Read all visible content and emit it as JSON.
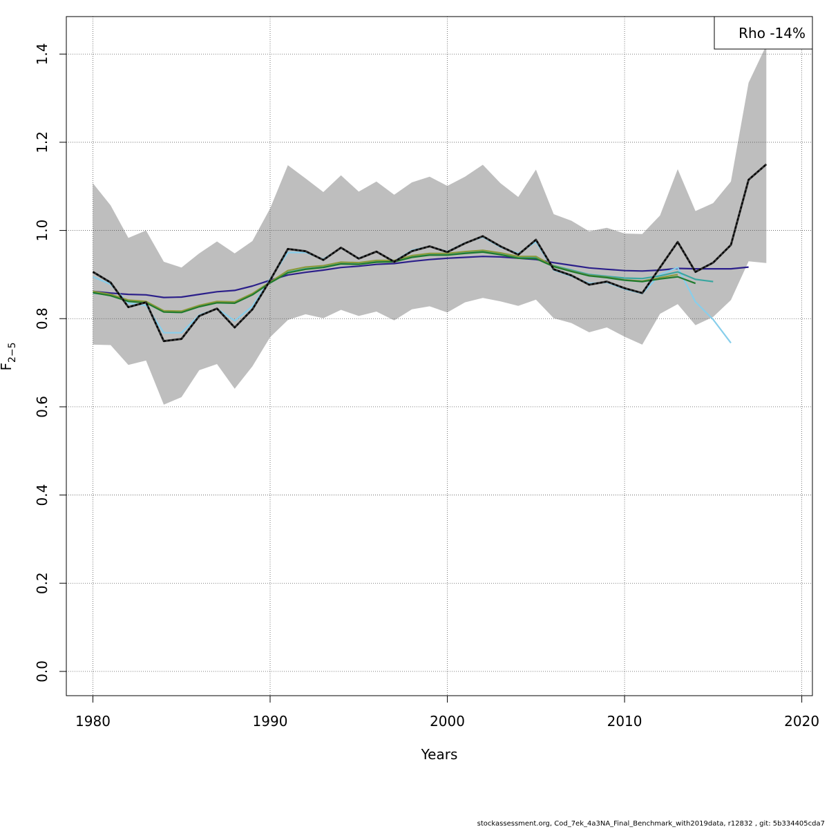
{
  "chart_data": {
    "type": "line",
    "title": "",
    "xlabel": "Years",
    "ylabel_main": "F",
    "ylabel_sub": "2−5",
    "xlim": [
      1978.5,
      2020.6
    ],
    "ylim": [
      -0.055,
      1.485
    ],
    "xticks": [
      "1980",
      "1990",
      "2000",
      "2010",
      "2020"
    ],
    "yticks": [
      "0.0",
      "0.2",
      "0.4",
      "0.6",
      "0.8",
      "1.0",
      "1.2",
      "1.4"
    ],
    "grid": true,
    "legend_placement": "top-right",
    "legend_text": "Rho -14%",
    "band": {
      "x": [
        1980,
        1981,
        1982,
        1983,
        1984,
        1985,
        1986,
        1987,
        1988,
        1989,
        1990,
        1991,
        1992,
        1993,
        1994,
        1995,
        1996,
        1997,
        1998,
        1999,
        2000,
        2001,
        2002,
        2003,
        2004,
        2005,
        2006,
        2007,
        2008,
        2009,
        2010,
        2011,
        2012,
        2013,
        2014,
        2015,
        2016,
        2017,
        2018
      ],
      "upper": [
        1.107,
        1.057,
        0.983,
        1.0,
        0.929,
        0.916,
        0.948,
        0.975,
        0.948,
        0.976,
        1.05,
        1.148,
        1.118,
        1.087,
        1.125,
        1.088,
        1.111,
        1.081,
        1.109,
        1.122,
        1.101,
        1.122,
        1.149,
        1.107,
        1.076,
        1.138,
        1.037,
        1.022,
        0.998,
        1.006,
        0.993,
        0.992,
        1.034,
        1.139,
        1.044,
        1.062,
        1.111,
        1.335,
        1.42
      ],
      "lower": [
        0.741,
        0.74,
        0.695,
        0.705,
        0.605,
        0.622,
        0.683,
        0.697,
        0.641,
        0.692,
        0.758,
        0.797,
        0.81,
        0.801,
        0.82,
        0.806,
        0.816,
        0.796,
        0.821,
        0.828,
        0.814,
        0.837,
        0.847,
        0.839,
        0.829,
        0.843,
        0.801,
        0.79,
        0.769,
        0.78,
        0.759,
        0.741,
        0.811,
        0.833,
        0.785,
        0.804,
        0.842,
        0.93,
        0.926
      ]
    },
    "series": [
      {
        "color": "#000000",
        "dashed": true,
        "x": [
          1980,
          1981,
          1982,
          1983,
          1984,
          1985,
          1986,
          1987,
          1988,
          1989,
          1990,
          1991,
          1992,
          1993,
          1994,
          1995,
          1996,
          1997,
          1998,
          1999,
          2000,
          2001,
          2002,
          2003,
          2004,
          2005,
          2006,
          2007,
          2008,
          2009,
          2010,
          2011,
          2012,
          2013,
          2014,
          2015,
          2016,
          2017,
          2018
        ],
        "values": [
          0.906,
          0.882,
          0.826,
          0.837,
          0.749,
          0.754,
          0.806,
          0.823,
          0.78,
          0.821,
          0.887,
          0.958,
          0.953,
          0.933,
          0.961,
          0.936,
          0.952,
          0.929,
          0.953,
          0.964,
          0.951,
          0.971,
          0.987,
          0.964,
          0.945,
          0.979,
          0.912,
          0.898,
          0.877,
          0.884,
          0.869,
          0.858,
          0.916,
          0.974,
          0.906,
          0.927,
          0.967,
          1.115,
          1.15
        ]
      },
      {
        "color": "#2b1f8a",
        "dashed": false,
        "x": [
          1980,
          1981,
          1982,
          1983,
          1984,
          1985,
          1986,
          1987,
          1988,
          1989,
          1990,
          1991,
          1992,
          1993,
          1994,
          1995,
          1996,
          1997,
          1998,
          1999,
          2000,
          2001,
          2002,
          2003,
          2004,
          2005,
          2006,
          2007,
          2008,
          2009,
          2010,
          2011,
          2012,
          2013,
          2014,
          2015,
          2016,
          2017
        ],
        "values": [
          0.862,
          0.858,
          0.855,
          0.854,
          0.848,
          0.849,
          0.855,
          0.861,
          0.864,
          0.874,
          0.887,
          0.899,
          0.905,
          0.91,
          0.916,
          0.919,
          0.923,
          0.925,
          0.93,
          0.934,
          0.937,
          0.939,
          0.941,
          0.94,
          0.937,
          0.934,
          0.927,
          0.921,
          0.915,
          0.912,
          0.909,
          0.908,
          0.91,
          0.914,
          0.913,
          0.913,
          0.913,
          0.917
        ]
      },
      {
        "color": "#87ceeb",
        "dashed": false,
        "x": [
          1980,
          1981,
          1982,
          1983,
          1984,
          1985,
          1986,
          1987,
          1988,
          1989,
          1990,
          1991,
          1992,
          1993,
          1994,
          1995,
          1996,
          1997,
          1998,
          1999,
          2000,
          2001,
          2002,
          2003,
          2004,
          2005,
          2006,
          2007,
          2008,
          2009,
          2010,
          2011,
          2012,
          2013,
          2014,
          2015,
          2016
        ],
        "values": [
          0.895,
          0.878,
          0.835,
          0.83,
          0.768,
          0.768,
          0.808,
          0.823,
          0.795,
          0.828,
          0.89,
          0.95,
          0.95,
          0.935,
          0.96,
          0.937,
          0.952,
          0.93,
          0.955,
          0.964,
          0.952,
          0.972,
          0.985,
          0.962,
          0.948,
          0.974,
          0.91,
          0.896,
          0.88,
          0.882,
          0.867,
          0.857,
          0.9,
          0.916,
          0.838,
          0.798,
          0.745
        ]
      },
      {
        "color": "#3aa6a0",
        "dashed": false,
        "x": [
          1980,
          1981,
          1982,
          1983,
          1984,
          1985,
          1986,
          1987,
          1988,
          1989,
          1990,
          1991,
          1992,
          1993,
          1994,
          1995,
          1996,
          1997,
          1998,
          1999,
          2000,
          2001,
          2002,
          2003,
          2004,
          2005,
          2006,
          2007,
          2008,
          2009,
          2010,
          2011,
          2012,
          2013,
          2014,
          2015
        ],
        "values": [
          0.858,
          0.853,
          0.84,
          0.838,
          0.817,
          0.816,
          0.828,
          0.837,
          0.836,
          0.855,
          0.882,
          0.905,
          0.913,
          0.917,
          0.925,
          0.924,
          0.929,
          0.93,
          0.94,
          0.945,
          0.945,
          0.949,
          0.952,
          0.947,
          0.939,
          0.938,
          0.92,
          0.91,
          0.9,
          0.896,
          0.892,
          0.891,
          0.897,
          0.906,
          0.889,
          0.884
        ]
      },
      {
        "color": "#8a9a3a",
        "dashed": false,
        "x": [
          1980,
          1981,
          1982,
          1983,
          1984,
          1985,
          1986,
          1987,
          1988,
          1989,
          1990,
          1991,
          1992,
          1993,
          1994,
          1995,
          1996,
          1997,
          1998,
          1999,
          2000,
          2001,
          2002,
          2003,
          2004,
          2005,
          2006,
          2007,
          2008,
          2009,
          2010,
          2011,
          2012,
          2013
        ],
        "values": [
          0.862,
          0.855,
          0.842,
          0.839,
          0.818,
          0.817,
          0.83,
          0.839,
          0.838,
          0.857,
          0.883,
          0.909,
          0.917,
          0.92,
          0.928,
          0.927,
          0.932,
          0.932,
          0.943,
          0.948,
          0.948,
          0.952,
          0.955,
          0.949,
          0.941,
          0.941,
          0.919,
          0.908,
          0.898,
          0.894,
          0.888,
          0.885,
          0.893,
          0.9
        ]
      },
      {
        "color": "#1f7a2e",
        "dashed": false,
        "x": [
          1980,
          1981,
          1982,
          1983,
          1984,
          1985,
          1986,
          1987,
          1988,
          1989,
          1990,
          1991,
          1992,
          1993,
          1994,
          1995,
          1996,
          1997,
          1998,
          1999,
          2000,
          2001,
          2002,
          2003,
          2004,
          2005,
          2006,
          2007,
          2008,
          2009,
          2010,
          2011,
          2012,
          2013,
          2014
        ],
        "values": [
          0.859,
          0.852,
          0.839,
          0.836,
          0.815,
          0.814,
          0.827,
          0.836,
          0.835,
          0.854,
          0.881,
          0.904,
          0.912,
          0.916,
          0.924,
          0.923,
          0.928,
          0.929,
          0.939,
          0.944,
          0.944,
          0.948,
          0.951,
          0.945,
          0.937,
          0.936,
          0.918,
          0.907,
          0.897,
          0.893,
          0.887,
          0.884,
          0.89,
          0.895,
          0.88
        ]
      }
    ]
  },
  "footer_text": "stockassessment.org, Cod_7ek_4a3NA_Final_Benchmark_with2019data, r12832 , git: 5b334405cda7"
}
